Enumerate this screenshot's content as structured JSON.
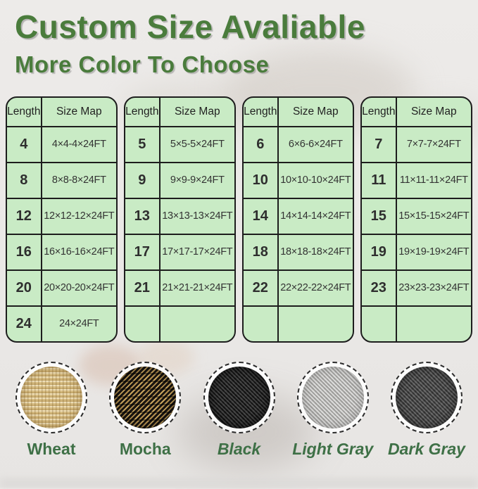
{
  "header": {
    "title": "Custom Size Avaliable",
    "subtitle": "More Color To Choose"
  },
  "palette": {
    "heading_green": "#4a7c3c",
    "label_green": "#3e7046",
    "table_background": "#c9ebc5",
    "table_border": "#1d1d1d",
    "table_text": "#2e2e2e"
  },
  "tables": [
    {
      "columns": [
        "Length",
        "Size Map"
      ],
      "rows": [
        [
          "4",
          "4×4-4×24FT"
        ],
        [
          "8",
          "8×8-8×24FT"
        ],
        [
          "12",
          "12×12-12×24FT"
        ],
        [
          "16",
          "16×16-16×24FT"
        ],
        [
          "20",
          "20×20-20×24FT"
        ],
        [
          "24",
          "24×24FT"
        ]
      ]
    },
    {
      "columns": [
        "Length",
        "Size Map"
      ],
      "rows": [
        [
          "5",
          "5×5-5×24FT"
        ],
        [
          "9",
          "9×9-9×24FT"
        ],
        [
          "13",
          "13×13-13×24FT"
        ],
        [
          "17",
          "17×17-17×24FT"
        ],
        [
          "21",
          "21×21-21×24FT"
        ],
        [
          "",
          ""
        ]
      ]
    },
    {
      "columns": [
        "Length",
        "Size Map"
      ],
      "rows": [
        [
          "6",
          "6×6-6×24FT"
        ],
        [
          "10",
          "10×10-10×24FT"
        ],
        [
          "14",
          "14×14-14×24FT"
        ],
        [
          "18",
          "18×18-18×24FT"
        ],
        [
          "22",
          "22×22-22×24FT"
        ],
        [
          "",
          ""
        ]
      ]
    },
    {
      "columns": [
        "Length",
        "Size Map"
      ],
      "rows": [
        [
          "7",
          "7×7-7×24FT"
        ],
        [
          "11",
          "11×11-11×24FT"
        ],
        [
          "15",
          "15×15-15×24FT"
        ],
        [
          "19",
          "19×19-19×24FT"
        ],
        [
          "23",
          "23×23-23×24FT"
        ],
        [
          "",
          ""
        ]
      ]
    }
  ],
  "colors": [
    {
      "id": "wheat",
      "label": "Wheat",
      "italic": false,
      "base_color": "#d9bf85"
    },
    {
      "id": "mocha",
      "label": "Mocha",
      "italic": false,
      "base_color": "#8a6f3e"
    },
    {
      "id": "black",
      "label": "Black",
      "italic": true,
      "base_color": "#2a2a2a"
    },
    {
      "id": "light-gray",
      "label": "Light Gray",
      "italic": true,
      "base_color": "#b4b3b0"
    },
    {
      "id": "dark-gray",
      "label": "Dark Gray",
      "italic": true,
      "base_color": "#5b5b5b"
    }
  ]
}
